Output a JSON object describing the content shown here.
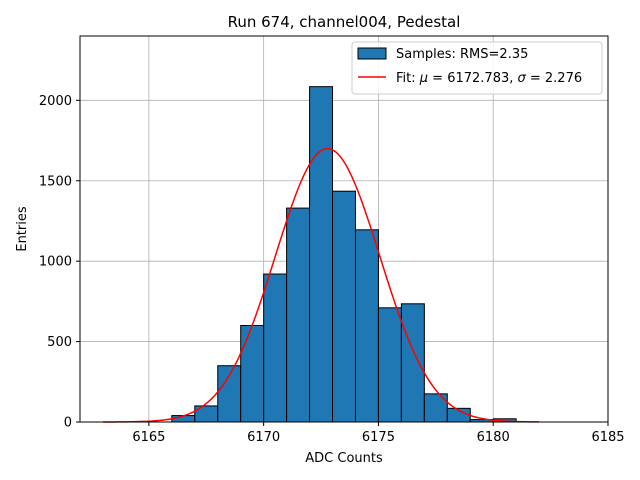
{
  "chart_data": {
    "type": "bar",
    "title": "Run 674, channel004, Pedestal",
    "xlabel": "ADC Counts",
    "ylabel": "Entries",
    "xlim": [
      6162,
      6185
    ],
    "ylim": [
      0,
      2400
    ],
    "xticks": [
      6165,
      6170,
      6175,
      6180,
      6185
    ],
    "yticks": [
      0,
      500,
      1000,
      1500,
      2000
    ],
    "grid": true,
    "legend_position": "top-right",
    "colors": {
      "bar": "#1f77b4",
      "bar_edge": "#000000",
      "fit": "#ff0000",
      "grid": "#b0b0b0"
    },
    "histogram": {
      "name": "Samples: RMS=2.35",
      "bin_width": 1,
      "bin_left_edges": [
        6166,
        6167,
        6168,
        6169,
        6170,
        6171,
        6172,
        6173,
        6174,
        6175,
        6176,
        6177,
        6178,
        6179,
        6180
      ],
      "counts": [
        40,
        100,
        350,
        600,
        920,
        1330,
        2085,
        1435,
        1195,
        710,
        735,
        175,
        85,
        15,
        20
      ]
    },
    "fit": {
      "name_prefix": "Fit: ",
      "name_mu": "μ",
      "mu_text": " = 6172.783, ",
      "name_sigma": "σ",
      "sigma_text": " = 2.276",
      "mu": 6172.783,
      "sigma": 2.276,
      "amplitude": 1700,
      "x_range": [
        6163,
        6182
      ]
    }
  }
}
